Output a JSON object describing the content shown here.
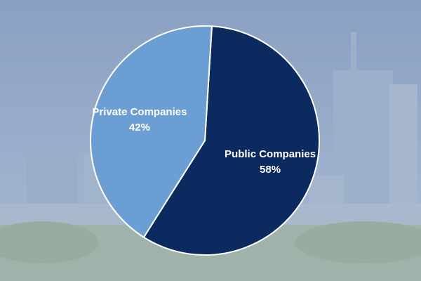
{
  "chart_data": {
    "type": "pie",
    "categories": [
      "Public Companies",
      "Private Companies"
    ],
    "values": [
      58,
      42
    ],
    "value_labels": [
      "58%",
      "42%"
    ],
    "colors": [
      "#0b2a5f",
      "#6b9fd3"
    ]
  }
}
